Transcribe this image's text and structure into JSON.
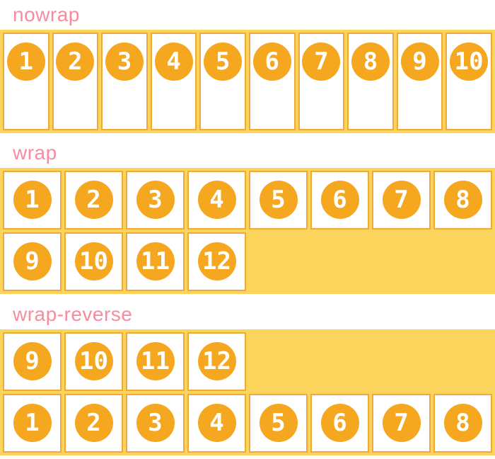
{
  "sections": [
    {
      "label": "nowrap",
      "wrap_mode": "nowrap",
      "items": [
        "1",
        "2",
        "3",
        "4",
        "5",
        "6",
        "7",
        "8",
        "9",
        "10"
      ]
    },
    {
      "label": "wrap",
      "wrap_mode": "wrap",
      "items": [
        "1",
        "2",
        "3",
        "4",
        "5",
        "6",
        "7",
        "8",
        "9",
        "10",
        "11",
        "12"
      ]
    },
    {
      "label": "wrap-reverse",
      "wrap_mode": "wrap-reverse",
      "items": [
        "1",
        "2",
        "3",
        "4",
        "5",
        "6",
        "7",
        "8",
        "9",
        "10",
        "11",
        "12"
      ]
    }
  ],
  "colors": {
    "page_bg": "#ffffff",
    "container_bg": "#fbd45c",
    "item_bg": "#ffffff",
    "item_border": "#f2a93c",
    "badge_bg": "#f5a71f",
    "badge_text": "#ffffff",
    "label_text": "#f78ca0"
  }
}
